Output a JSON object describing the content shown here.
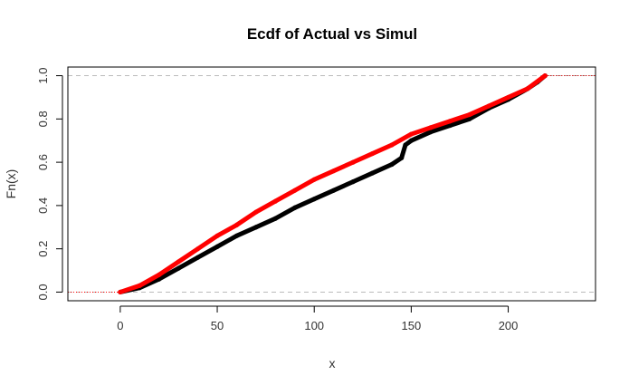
{
  "chart_data": {
    "type": "line",
    "title": "Ecdf of Actual vs Simul",
    "xlabel": "x",
    "ylabel": "Fn(x)",
    "xlim": [
      -27,
      245
    ],
    "ylim": [
      -0.04,
      1.04
    ],
    "xticks": [
      0,
      50,
      100,
      150,
      200
    ],
    "xtick_labels": [
      "0",
      "50",
      "100",
      "150",
      "200"
    ],
    "yticks": [
      0.0,
      0.2,
      0.4,
      0.6,
      0.8,
      1.0
    ],
    "ytick_labels": [
      "0.0",
      "0.2",
      "0.4",
      "0.6",
      "0.8",
      "1.0"
    ],
    "reference_lines_y": [
      0,
      1
    ],
    "grid": false,
    "series": [
      {
        "color": "#000000",
        "x": [
          0,
          10,
          20,
          30,
          40,
          50,
          60,
          70,
          80,
          90,
          100,
          110,
          120,
          130,
          140,
          145,
          147,
          150,
          160,
          170,
          180,
          190,
          200,
          210,
          215,
          219
        ],
        "y": [
          0.0,
          0.02,
          0.06,
          0.11,
          0.16,
          0.21,
          0.26,
          0.3,
          0.34,
          0.39,
          0.43,
          0.47,
          0.51,
          0.55,
          0.59,
          0.62,
          0.68,
          0.7,
          0.74,
          0.77,
          0.8,
          0.85,
          0.89,
          0.94,
          0.97,
          1.0
        ]
      },
      {
        "color": "#ff0000",
        "x": [
          0,
          10,
          20,
          30,
          40,
          50,
          60,
          70,
          80,
          90,
          100,
          110,
          120,
          130,
          140,
          150,
          160,
          170,
          180,
          190,
          200,
          210,
          219
        ],
        "y": [
          0.0,
          0.03,
          0.08,
          0.14,
          0.2,
          0.26,
          0.31,
          0.37,
          0.42,
          0.47,
          0.52,
          0.56,
          0.6,
          0.64,
          0.68,
          0.73,
          0.76,
          0.79,
          0.82,
          0.86,
          0.9,
          0.94,
          1.0
        ]
      }
    ]
  }
}
